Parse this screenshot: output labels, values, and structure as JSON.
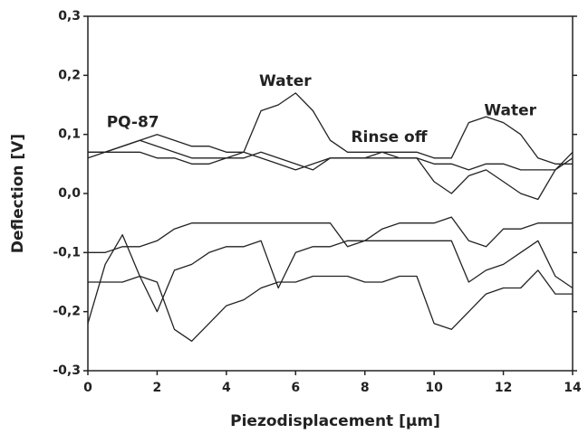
{
  "chart_data": {
    "type": "line",
    "xlabel": "Piezodisplacement [µm]",
    "ylabel": "Deflection [V]",
    "annotations": [
      "PQ-87",
      "Water",
      "Rinse off",
      "Water"
    ],
    "x": [
      0,
      0.5,
      1,
      1.5,
      2,
      2.5,
      3,
      3.5,
      4,
      4.5,
      5,
      5.5,
      6,
      6.5,
      7,
      7.5,
      8,
      8.5,
      9,
      9.5,
      10,
      10.5,
      11,
      11.5,
      12,
      12.5,
      13,
      13.5,
      14
    ],
    "series": [
      {
        "color": "#222222",
        "values": [
          0.07,
          0.07,
          0.08,
          0.09,
          0.1,
          0.09,
          0.08,
          0.08,
          0.07,
          0.07,
          0.14,
          0.15,
          0.17,
          0.14,
          0.09,
          0.07,
          0.07,
          0.07,
          0.07,
          0.07,
          0.06,
          0.06,
          0.12,
          0.13,
          0.12,
          0.1,
          0.06,
          0.05,
          0.05
        ]
      },
      {
        "color": "#222222",
        "values": [
          0.07,
          0.07,
          0.08,
          0.09,
          0.08,
          0.07,
          0.06,
          0.06,
          0.06,
          0.07,
          0.06,
          0.05,
          0.04,
          0.05,
          0.06,
          0.06,
          0.06,
          0.07,
          0.06,
          0.06,
          0.02,
          0.0,
          0.03,
          0.04,
          0.02,
          0.0,
          -0.01,
          0.04,
          0.06
        ]
      },
      {
        "color": "#222222",
        "values": [
          0.06,
          0.07,
          0.07,
          0.07,
          0.06,
          0.06,
          0.05,
          0.05,
          0.06,
          0.06,
          0.07,
          0.06,
          0.05,
          0.04,
          0.06,
          0.06,
          0.06,
          0.06,
          0.06,
          0.06,
          0.05,
          0.05,
          0.04,
          0.05,
          0.05,
          0.04,
          0.04,
          0.04,
          0.07
        ]
      },
      {
        "color": "#222222",
        "values": [
          -0.1,
          -0.1,
          -0.09,
          -0.09,
          -0.08,
          -0.06,
          -0.05,
          -0.05,
          -0.05,
          -0.05,
          -0.05,
          -0.05,
          -0.05,
          -0.05,
          -0.05,
          -0.09,
          -0.08,
          -0.06,
          -0.05,
          -0.05,
          -0.05,
          -0.04,
          -0.08,
          -0.09,
          -0.06,
          -0.06,
          -0.05,
          -0.05,
          -0.05
        ]
      },
      {
        "color": "#222222",
        "values": [
          -0.22,
          -0.12,
          -0.07,
          -0.14,
          -0.2,
          -0.13,
          -0.12,
          -0.1,
          -0.09,
          -0.09,
          -0.08,
          -0.16,
          -0.1,
          -0.09,
          -0.09,
          -0.08,
          -0.08,
          -0.08,
          -0.08,
          -0.08,
          -0.08,
          -0.08,
          -0.15,
          -0.13,
          -0.12,
          -0.1,
          -0.08,
          -0.14,
          -0.16
        ]
      },
      {
        "color": "#222222",
        "values": [
          -0.15,
          -0.15,
          -0.15,
          -0.14,
          -0.15,
          -0.23,
          -0.25,
          -0.22,
          -0.19,
          -0.18,
          -0.16,
          -0.15,
          -0.15,
          -0.14,
          -0.14,
          -0.14,
          -0.15,
          -0.15,
          -0.14,
          -0.14,
          -0.22,
          -0.23,
          -0.2,
          -0.17,
          -0.16,
          -0.16,
          -0.13,
          -0.17,
          -0.17
        ]
      }
    ],
    "xlim": [
      0,
      14
    ],
    "xticks": [
      0,
      2,
      4,
      6,
      8,
      10,
      12,
      14
    ],
    "ylim": [
      -0.3,
      0.3
    ],
    "yticks": [
      {
        "value": -0.3,
        "label": "-0,3"
      },
      {
        "value": -0.2,
        "label": "-0,2"
      },
      {
        "value": -0.1,
        "label": "-0,1"
      },
      {
        "value": 0.0,
        "label": "0,0"
      },
      {
        "value": 0.1,
        "label": "0,1"
      },
      {
        "value": 0.2,
        "label": "0,2"
      },
      {
        "value": 0.3,
        "label": "0,3"
      }
    ],
    "grid": false
  }
}
